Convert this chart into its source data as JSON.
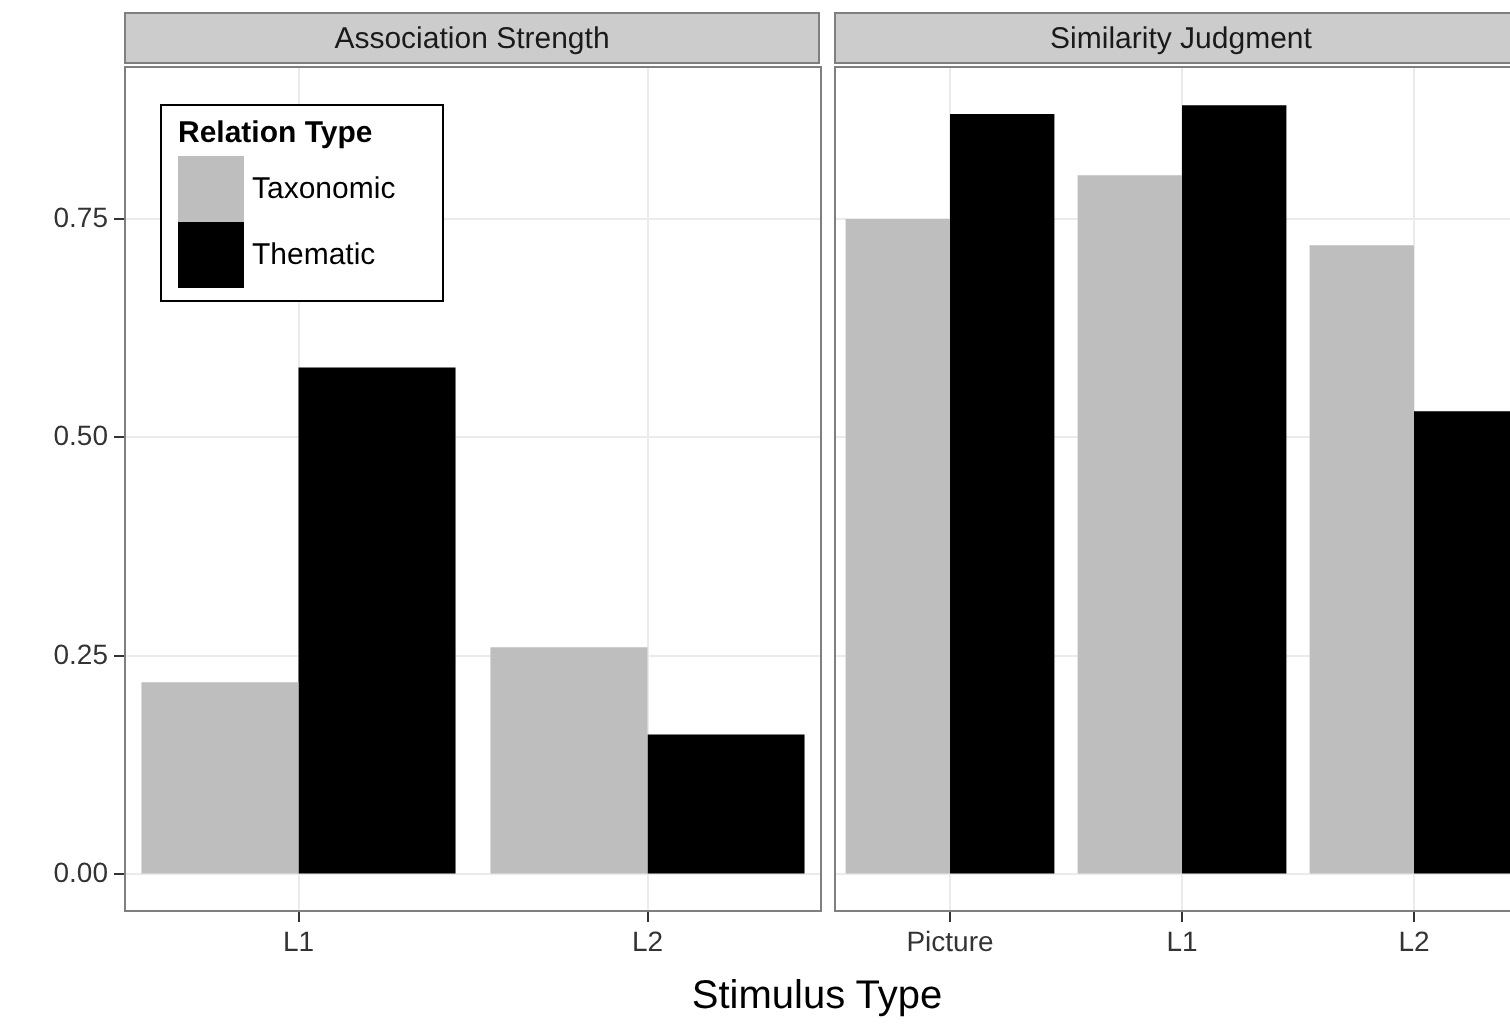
{
  "chart_data": [
    {
      "type": "bar",
      "title": "Association Strength",
      "xlabel": "Stimulus Type",
      "categories": [
        "L1",
        "L2"
      ],
      "series": [
        {
          "name": "Taxonomic",
          "color": "#bebebe",
          "values": [
            0.22,
            0.26
          ]
        },
        {
          "name": "Thematic",
          "color": "#000000",
          "values": [
            0.58,
            0.16
          ]
        }
      ],
      "ylim": [
        -0.043,
        0.925
      ],
      "yticks": [
        {
          "value": 0,
          "label": "0.00"
        },
        {
          "value": 0.25,
          "label": "0.25"
        },
        {
          "value": 0.5,
          "label": "0.50"
        },
        {
          "value": 0.75,
          "label": "0.75"
        }
      ],
      "grid": true,
      "legend": "top left",
      "legend_title": "Relation Type"
    },
    {
      "type": "bar",
      "title": "Similarity Judgment",
      "categories": [
        "Picture",
        "L1",
        "L2"
      ],
      "series": [
        {
          "color": "#bebebe",
          "values": [
            0.75,
            0.8,
            0.72
          ]
        },
        {
          "color": "#000000",
          "values": [
            0.87,
            0.88,
            0.53
          ]
        }
      ],
      "ylim": [
        -0.043,
        0.925
      ],
      "yticks": [
        {
          "value": 0,
          "label": null
        },
        {
          "value": 0.25,
          "label": null
        },
        {
          "value": 0.5,
          "label": null
        },
        {
          "value": 0.75,
          "label": null
        }
      ],
      "grid": true,
      "legend": false,
      "tick_labels": "x"
    }
  ]
}
